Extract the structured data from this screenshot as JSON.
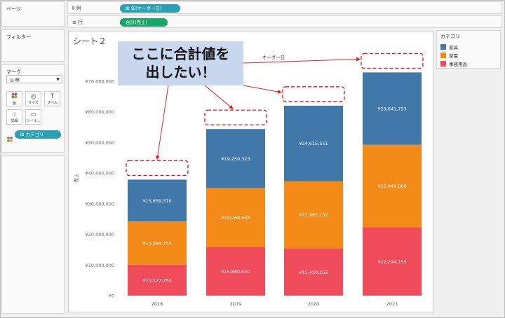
{
  "sidebar": {
    "pages_title": "ページ",
    "filters_title": "フィルター",
    "marks_title": "マーク",
    "mark_type": "棒",
    "buttons": [
      {
        "label": "色",
        "icon": "color-icon"
      },
      {
        "label": "サイズ",
        "icon": "size-icon"
      },
      {
        "label": "ラベル",
        "icon": "label-icon"
      },
      {
        "label": "詳細",
        "icon": "detail-icon"
      },
      {
        "label": "ツール...",
        "icon": "tooltip-icon"
      }
    ],
    "color_pill": "カテゴリ"
  },
  "shelves": {
    "columns_label": "列",
    "columns_pill": "年(オーダー日)",
    "rows_label": "行",
    "rows_pill": "合計(売上)"
  },
  "sheet": {
    "title": "シート２"
  },
  "callout": {
    "line1": "ここに合計値を",
    "line2": "出したい！"
  },
  "legend": {
    "title": "カテゴリ",
    "items": [
      {
        "label": "家具",
        "color": "#4178aa"
      },
      {
        "label": "家電",
        "color": "#f48b18"
      },
      {
        "label": "事務用品",
        "color": "#ef4b5a"
      }
    ]
  },
  "chart_data": {
    "type": "bar",
    "stacked": true,
    "title": "オーダー日",
    "ylabel": "売上",
    "ylim": [
      0,
      70000000
    ],
    "yticks": [
      "¥0",
      "¥10,000,000",
      "¥20,000,000",
      "¥30,000,000",
      "¥40,000,000",
      "¥50,000,000",
      "¥60,000,000",
      "¥70,000,000"
    ],
    "categories": [
      "2018",
      "2019",
      "2020",
      "2021"
    ],
    "series": [
      {
        "name": "事務用品",
        "color": "#ef4b5a",
        "values": [
          10127254,
          15880630,
          15420252,
          22294153
        ],
        "labels": [
          "¥10,127,254",
          "¥15,880,630",
          "¥15,420,252",
          "¥22,294,153"
        ]
      },
      {
        "name": "家電",
        "color": "#f48b18",
        "values": [
          14084755,
          19268608,
          21985132,
          26949060
        ],
        "labels": [
          "¥14,084,755",
          "¥19,268,608",
          "¥21,985,132",
          "¥26,949,060"
        ]
      },
      {
        "name": "家具",
        "color": "#4178aa",
        "values": [
          13659370,
          19250323,
          24615551,
          23641753
        ],
        "labels": [
          "¥13,659,370",
          "¥19,250,323",
          "¥24,615,551",
          "¥23,641,753"
        ]
      }
    ]
  }
}
